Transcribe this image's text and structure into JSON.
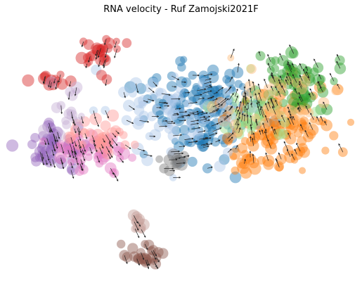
{
  "chart_data": {
    "type": "scatter",
    "title": "RNA velocity - Ruf Zamojski2021F",
    "xlabel": "",
    "ylabel": "",
    "axes_visible": false,
    "grid": false,
    "legend": "none",
    "overlay": "velocity-arrows",
    "xlim": [
      0,
      100
    ],
    "ylim": [
      0,
      100
    ],
    "clusters": [
      {
        "color": "#1f77b4",
        "cx": 56,
        "cy": 66,
        "sx": 9,
        "sy": 10,
        "n": 150
      },
      {
        "color": "#ff7f0e",
        "cx": 80,
        "cy": 58,
        "sx": 8,
        "sy": 10,
        "n": 120
      },
      {
        "color": "#2ca02c",
        "cx": 85,
        "cy": 76,
        "sx": 6,
        "sy": 7,
        "n": 70
      },
      {
        "color": "#98df8a",
        "cx": 72,
        "cy": 65,
        "sx": 6,
        "sy": 6,
        "n": 40
      },
      {
        "color": "#aec7e8",
        "cx": 48,
        "cy": 64,
        "sx": 10,
        "sy": 10,
        "n": 70
      },
      {
        "color": "#ffbb78",
        "cx": 78,
        "cy": 68,
        "sx": 10,
        "sy": 8,
        "n": 40
      },
      {
        "color": "#9467bd",
        "cx": 12,
        "cy": 51,
        "sx": 5,
        "sy": 4,
        "n": 55
      },
      {
        "color": "#e377c2",
        "cx": 22,
        "cy": 49,
        "sx": 6,
        "sy": 4,
        "n": 50
      },
      {
        "color": "#ff9896",
        "cx": 25,
        "cy": 56,
        "sx": 6,
        "sy": 4,
        "n": 35
      },
      {
        "color": "#d62728",
        "cx": 25,
        "cy": 88,
        "sx": 3,
        "sy": 3,
        "n": 28
      },
      {
        "color": "#d62728",
        "cx": 11,
        "cy": 78,
        "sx": 2.5,
        "sy": 1.4,
        "n": 14
      },
      {
        "color": "#c5b0d5",
        "cx": 16,
        "cy": 67,
        "sx": 3,
        "sy": 5,
        "n": 18
      },
      {
        "color": "#7f7f7f",
        "cx": 48,
        "cy": 45,
        "sx": 2.5,
        "sy": 1.6,
        "n": 14
      },
      {
        "color": "#c49c94",
        "cx": 37,
        "cy": 21,
        "sx": 1.5,
        "sy": 2.5,
        "n": 10
      },
      {
        "color": "#8c564b",
        "cx": 39,
        "cy": 9,
        "sx": 3,
        "sy": 2.5,
        "n": 24
      }
    ],
    "flow": [
      {
        "cx": 50,
        "cy": 60,
        "dx": 1.0,
        "dy": 0.1
      },
      {
        "cx": 15,
        "cy": 48,
        "dx": 0.3,
        "dy": -1.0
      },
      {
        "cx": 25,
        "cy": 88,
        "dx": -0.3,
        "dy": -1.0
      },
      {
        "cx": 80,
        "cy": 62,
        "dx": -0.4,
        "dy": 0.8
      }
    ]
  }
}
